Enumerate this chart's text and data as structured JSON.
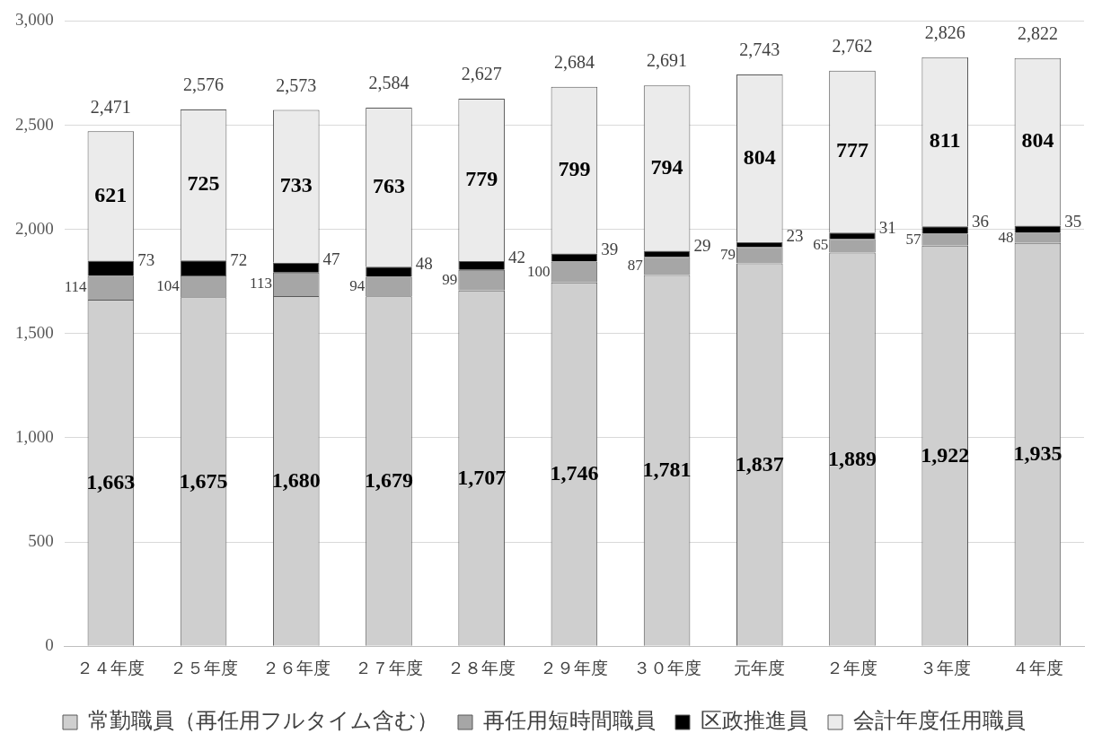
{
  "chart_data": {
    "type": "bar",
    "stacked": true,
    "categories": [
      "２４年度",
      "２５年度",
      "２６年度",
      "２７年度",
      "２８年度",
      "２９年度",
      "３０年度",
      "元年度",
      "２年度",
      "３年度",
      "４年度"
    ],
    "series": [
      {
        "name": "常勤職員（再任用フルタイム含む）",
        "color": "#cfcfcf",
        "values": [
          1663,
          1675,
          1680,
          1679,
          1707,
          1746,
          1781,
          1837,
          1889,
          1922,
          1935
        ],
        "value_labels": [
          "1,663",
          "1,675",
          "1,680",
          "1,679",
          "1,707",
          "1,746",
          "1,781",
          "1,837",
          "1,889",
          "1,922",
          "1,935"
        ]
      },
      {
        "name": "再任用短時間職員",
        "color": "#a6a6a6",
        "values": [
          114,
          104,
          113,
          94,
          99,
          100,
          87,
          79,
          65,
          57,
          48
        ],
        "value_labels": [
          "114",
          "104",
          "113",
          "94",
          "99",
          "100",
          "87",
          "79",
          "65",
          "57",
          "48"
        ]
      },
      {
        "name": "区政推進員",
        "color": "#000000",
        "values": [
          73,
          72,
          47,
          48,
          42,
          39,
          29,
          23,
          31,
          36,
          35
        ],
        "value_labels": [
          "73",
          "72",
          "47",
          "48",
          "42",
          "39",
          "29",
          "23",
          "31",
          "36",
          "35"
        ]
      },
      {
        "name": "会計年度任用職員",
        "color": "#ebebeb",
        "values": [
          621,
          725,
          733,
          763,
          779,
          799,
          794,
          804,
          777,
          811,
          804
        ],
        "value_labels": [
          "621",
          "725",
          "733",
          "763",
          "779",
          "799",
          "794",
          "804",
          "777",
          "811",
          "804"
        ]
      }
    ],
    "totals": [
      "2,471",
      "2,576",
      "2,573",
      "2,584",
      "2,627",
      "2,684",
      "2,691",
      "2,743",
      "2,762",
      "2,826",
      "2,822"
    ],
    "ylim": [
      0,
      3000
    ],
    "yticks": [
      {
        "value": 0,
        "label": "0"
      },
      {
        "value": 500,
        "label": "500"
      },
      {
        "value": 1000,
        "label": "1,000"
      },
      {
        "value": 1500,
        "label": "1,500"
      },
      {
        "value": 2000,
        "label": "2,000"
      },
      {
        "value": 2500,
        "label": "2,500"
      },
      {
        "value": 3000,
        "label": "3,000"
      }
    ],
    "grid": "y",
    "legend": "bottom"
  }
}
